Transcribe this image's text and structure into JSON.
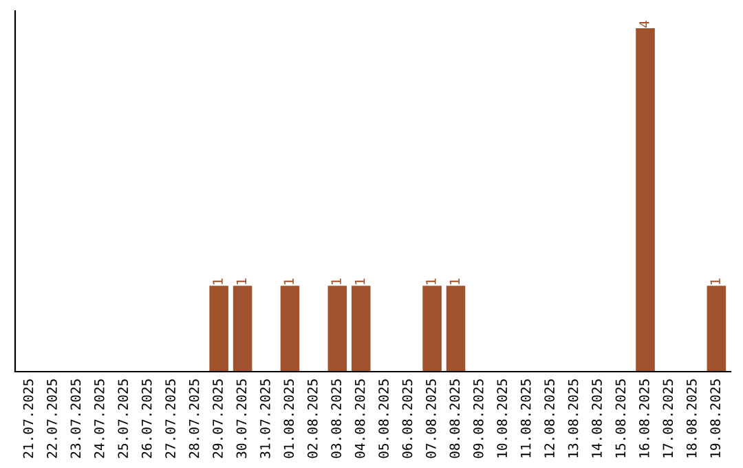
{
  "chart_data": {
    "type": "bar",
    "categories": [
      "21.07.2025",
      "22.07.2025",
      "23.07.2025",
      "24.07.2025",
      "25.07.2025",
      "26.07.2025",
      "27.07.2025",
      "28.07.2025",
      "29.07.2025",
      "30.07.2025",
      "31.07.2025",
      "01.08.2025",
      "02.08.2025",
      "03.08.2025",
      "04.08.2025",
      "05.08.2025",
      "06.08.2025",
      "07.08.2025",
      "08.08.2025",
      "09.08.2025",
      "10.08.2025",
      "11.08.2025",
      "12.08.2025",
      "13.08.2025",
      "14.08.2025",
      "15.08.2025",
      "16.08.2025",
      "17.08.2025",
      "18.08.2025",
      "19.08.2025"
    ],
    "values": [
      0,
      0,
      0,
      0,
      0,
      0,
      0,
      0,
      1,
      1,
      0,
      1,
      0,
      1,
      1,
      0,
      0,
      1,
      1,
      0,
      0,
      0,
      0,
      0,
      0,
      0,
      4,
      0,
      0,
      1
    ],
    "value_labels": [
      null,
      null,
      null,
      null,
      null,
      null,
      null,
      null,
      "1",
      "1",
      null,
      "1",
      null,
      "1",
      "1",
      null,
      null,
      "1",
      "1",
      null,
      null,
      null,
      null,
      null,
      null,
      null,
      "4",
      null,
      null,
      "1"
    ],
    "color": "#a0522d",
    "ylim": [
      0,
      4.2
    ],
    "tick_labels": "x",
    "grid": false,
    "legend": false
  }
}
